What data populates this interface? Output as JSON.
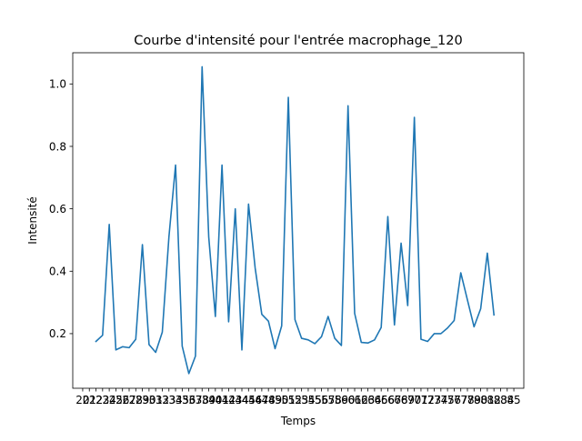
{
  "chart_data": {
    "type": "line",
    "title": "Courbe d'intensité pour l'entrée macrophage_120",
    "xlabel": "Temps",
    "ylabel": "Intensité",
    "xlim": [
      -1.5,
      66.5
    ],
    "ylim": [
      0.025,
      1.1
    ],
    "grid": false,
    "legend": "none",
    "line_color": "#1f77b4",
    "yticks": [
      0.2,
      0.4,
      0.6,
      0.8,
      1.0
    ],
    "ytick_labels": [
      "0.2",
      "0.4",
      "0.6",
      "0.8",
      "1.0"
    ],
    "xtick_labels": [
      "20",
      "21",
      "22",
      "23",
      "24",
      "25",
      "26",
      "27",
      "28",
      "29",
      "30",
      "31",
      "32",
      "33",
      "34",
      "35",
      "36",
      "37",
      "38",
      "39",
      "40",
      "41",
      "42",
      "43",
      "44",
      "45",
      "46",
      "47",
      "48",
      "49",
      "50",
      "51",
      "52",
      "53",
      "54",
      "55",
      "56",
      "57",
      "58",
      "59",
      "60",
      "61",
      "62",
      "63",
      "64",
      "65",
      "66",
      "67",
      "68",
      "69",
      "70",
      "71",
      "72",
      "73",
      "74",
      "75",
      "76",
      "77",
      "78",
      "79",
      "80",
      "81",
      "82",
      "83",
      "84",
      "85"
    ],
    "series": [
      {
        "values": [
          null,
          null,
          0.175,
          0.195,
          0.55,
          0.148,
          0.158,
          0.155,
          0.182,
          0.485,
          0.165,
          0.14,
          0.205,
          0.51,
          0.74,
          0.16,
          0.072,
          0.128,
          1.055,
          0.51,
          0.255,
          0.74,
          0.238,
          0.6,
          0.148,
          0.615,
          0.41,
          0.262,
          0.24,
          0.152,
          0.225,
          0.957,
          0.245,
          0.185,
          0.18,
          0.168,
          0.19,
          0.255,
          0.185,
          0.162,
          0.93,
          0.265,
          0.172,
          0.17,
          0.18,
          0.22,
          0.575,
          0.228,
          0.49,
          0.29,
          0.893,
          0.182,
          0.175,
          0.2,
          0.2,
          0.218,
          0.242,
          0.395,
          0.308,
          0.222,
          0.28,
          0.458,
          0.26,
          null,
          null,
          null
        ]
      }
    ]
  }
}
